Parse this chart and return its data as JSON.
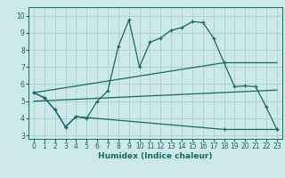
{
  "xlabel": "Humidex (Indice chaleur)",
  "xlim": [
    -0.5,
    23.5
  ],
  "ylim": [
    2.8,
    10.5
  ],
  "yticks": [
    3,
    4,
    5,
    6,
    7,
    8,
    9,
    10
  ],
  "xticks": [
    0,
    1,
    2,
    3,
    4,
    5,
    6,
    7,
    8,
    9,
    10,
    11,
    12,
    13,
    14,
    15,
    16,
    17,
    18,
    19,
    20,
    21,
    22,
    23
  ],
  "bg_color": "#cce8e8",
  "grid_color": "#aad0d0",
  "line_color": "#1a6666",
  "line1_x": [
    0,
    1,
    2,
    3,
    4,
    5,
    6,
    7,
    8,
    9,
    10,
    11,
    12,
    13,
    14,
    15,
    16,
    17,
    18,
    19,
    20,
    21,
    22,
    23
  ],
  "line1_y": [
    5.5,
    5.2,
    4.5,
    3.5,
    4.1,
    4.0,
    5.0,
    5.6,
    8.2,
    9.75,
    7.0,
    8.45,
    8.7,
    9.15,
    9.3,
    9.65,
    9.6,
    8.7,
    7.25,
    5.85,
    5.9,
    5.85,
    4.65,
    3.35
  ],
  "line2_x": [
    0,
    1,
    2,
    3,
    4,
    18,
    23
  ],
  "line2_y": [
    5.5,
    5.2,
    4.5,
    3.5,
    4.1,
    3.35,
    3.35
  ],
  "line3_x": [
    0,
    18,
    23
  ],
  "line3_y": [
    5.5,
    7.25,
    7.25
  ],
  "line4_x": [
    0,
    23
  ],
  "line4_y": [
    5.0,
    5.65
  ]
}
